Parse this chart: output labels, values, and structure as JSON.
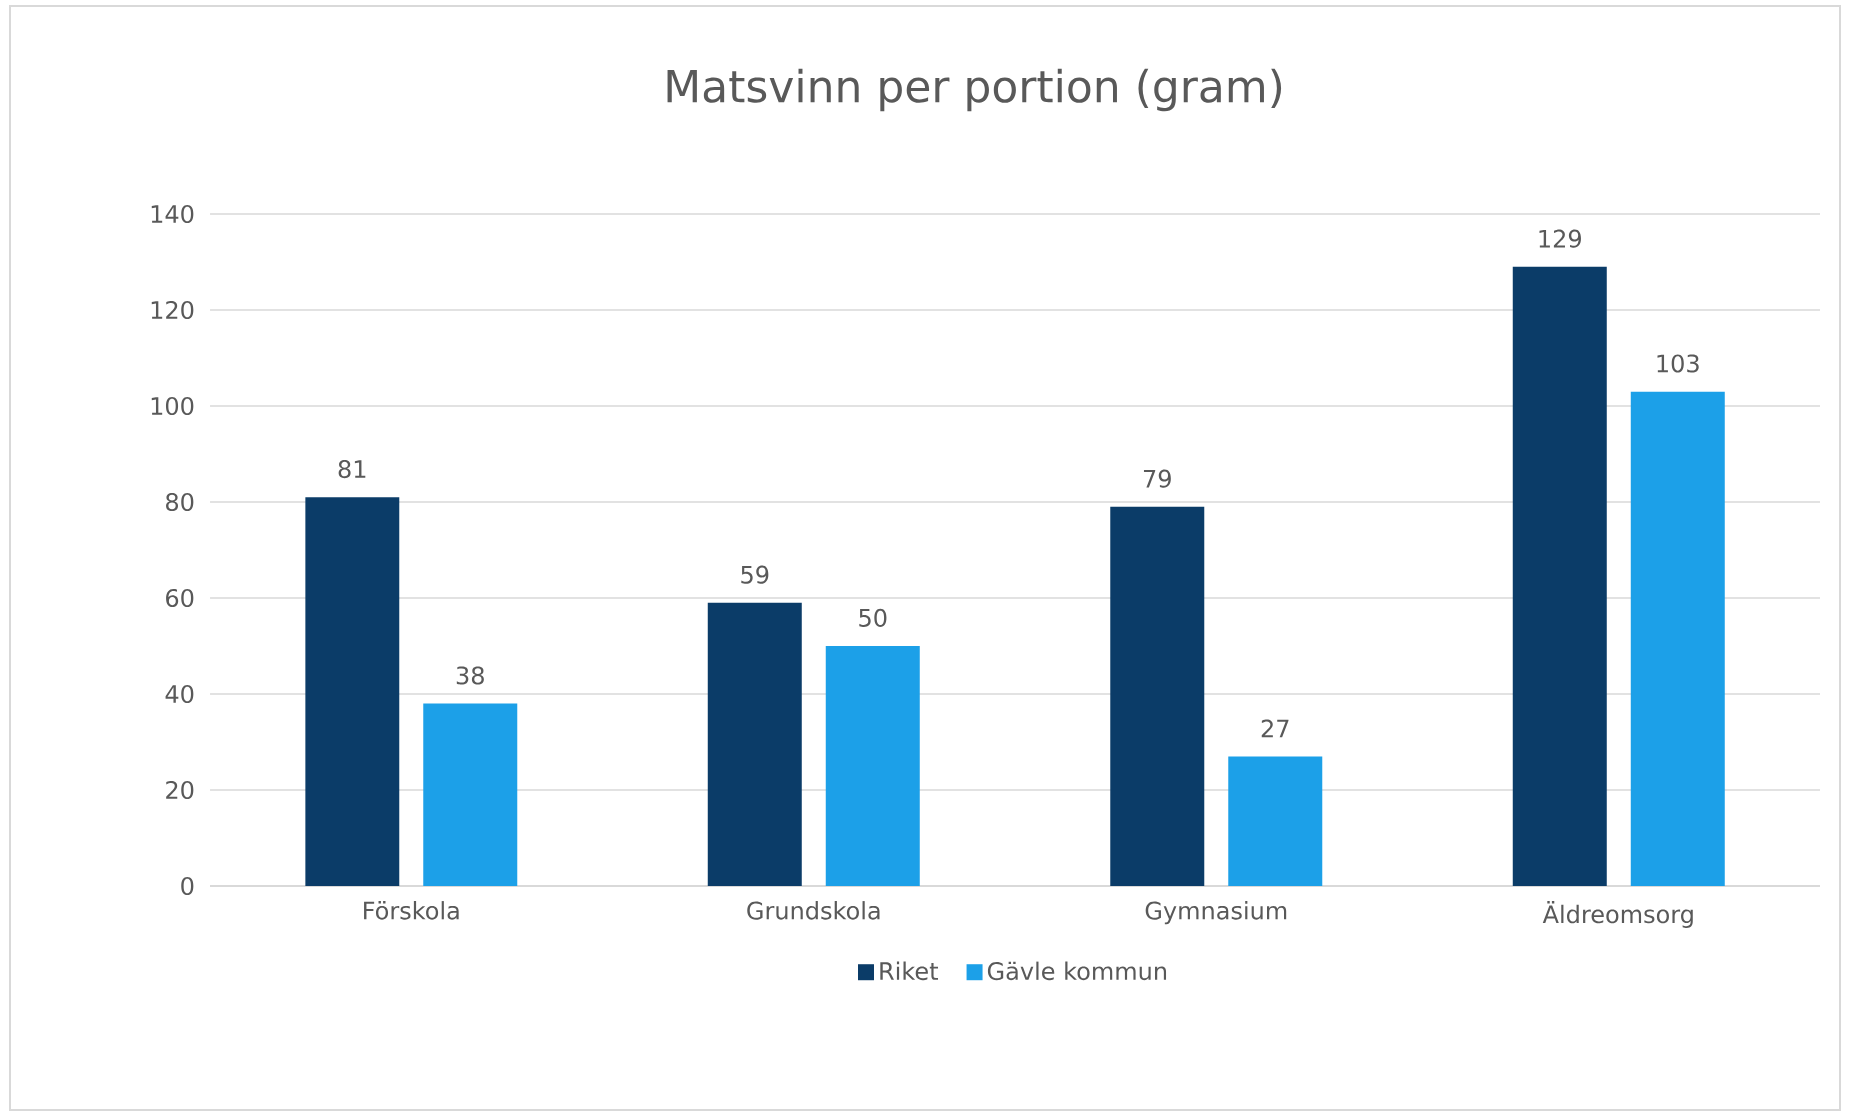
{
  "chart_data": {
    "type": "bar",
    "title": "Matsvinn per portion (gram)",
    "categories": [
      "Förskola",
      "Grundskola",
      "Gymnasium",
      "Äldreomsorg"
    ],
    "series": [
      {
        "name": "Riket",
        "color": "#0b3c68",
        "values": [
          81,
          59,
          79,
          129
        ]
      },
      {
        "name": "Gävle kommun",
        "color": "#1ca0e8",
        "values": [
          38,
          50,
          27,
          103
        ]
      }
    ],
    "ylim": [
      0,
      140
    ],
    "yticks": [
      0,
      20,
      40,
      60,
      80,
      100,
      120,
      140
    ],
    "grid": "y",
    "legend": "bottom",
    "data_labels": true
  }
}
